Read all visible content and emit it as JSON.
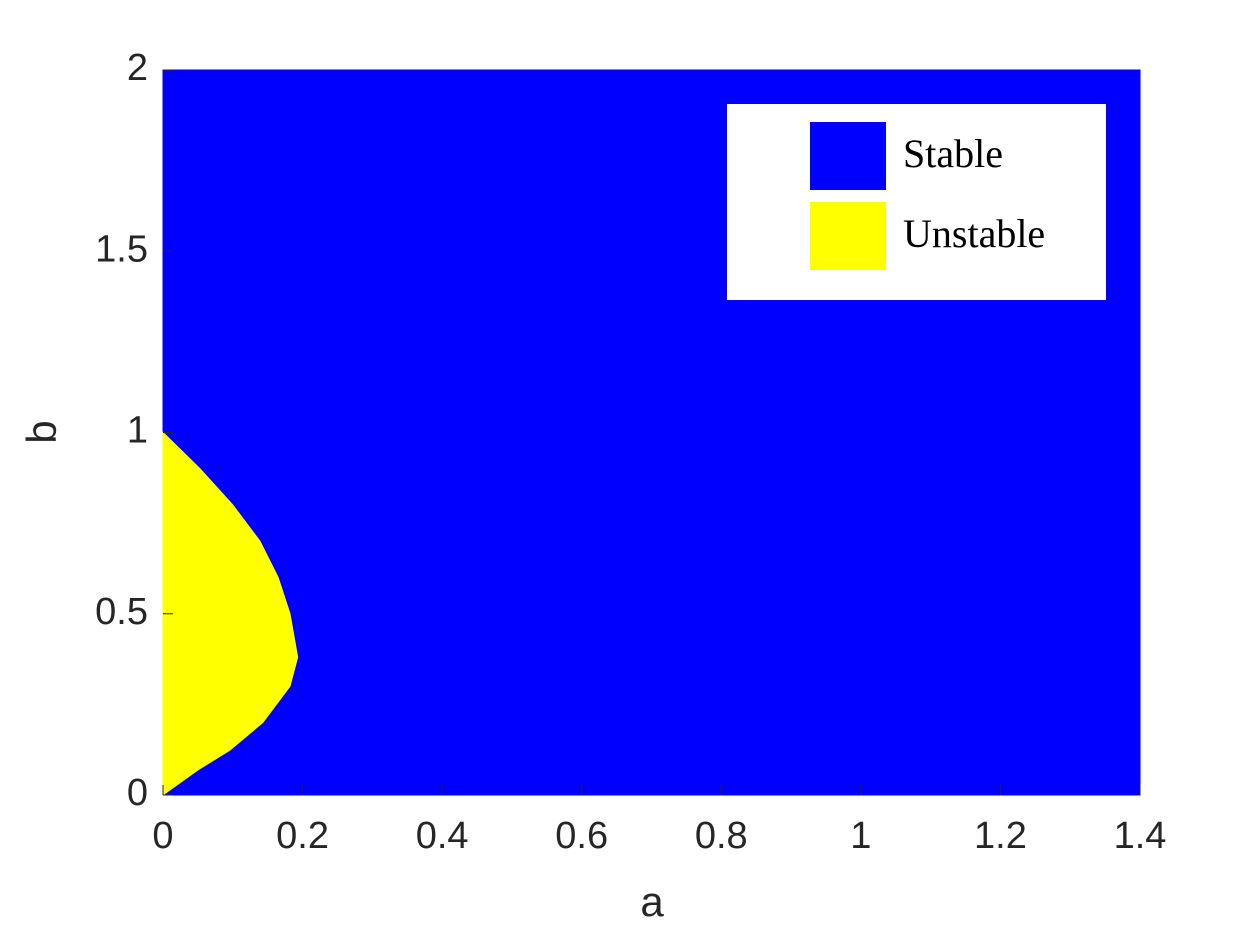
{
  "chart_data": {
    "type": "area",
    "xlabel": "a",
    "ylabel": "b",
    "xlim": [
      0,
      1.4
    ],
    "ylim": [
      0,
      2
    ],
    "xticks": [
      0,
      0.2,
      0.4,
      0.6,
      0.8,
      1,
      1.2,
      1.4
    ],
    "yticks": [
      0,
      0.5,
      1,
      1.5,
      2
    ],
    "legend": "upper right",
    "series": [
      {
        "name": "Stable",
        "color": "#0000ff",
        "x": [
          0,
          1.4,
          1.4,
          0
        ],
        "y": [
          0,
          0,
          2,
          2
        ]
      },
      {
        "name": "Unstable",
        "color": "#ffff00",
        "x": [
          0,
          0.05,
          0.096,
          0.143,
          0.182,
          0.193,
          0.182,
          0.165,
          0.139,
          0.1,
          0.053,
          0
        ],
        "y": [
          0,
          0.069,
          0.124,
          0.2,
          0.3,
          0.38,
          0.5,
          0.6,
          0.7,
          0.8,
          0.9,
          1
        ]
      }
    ]
  }
}
